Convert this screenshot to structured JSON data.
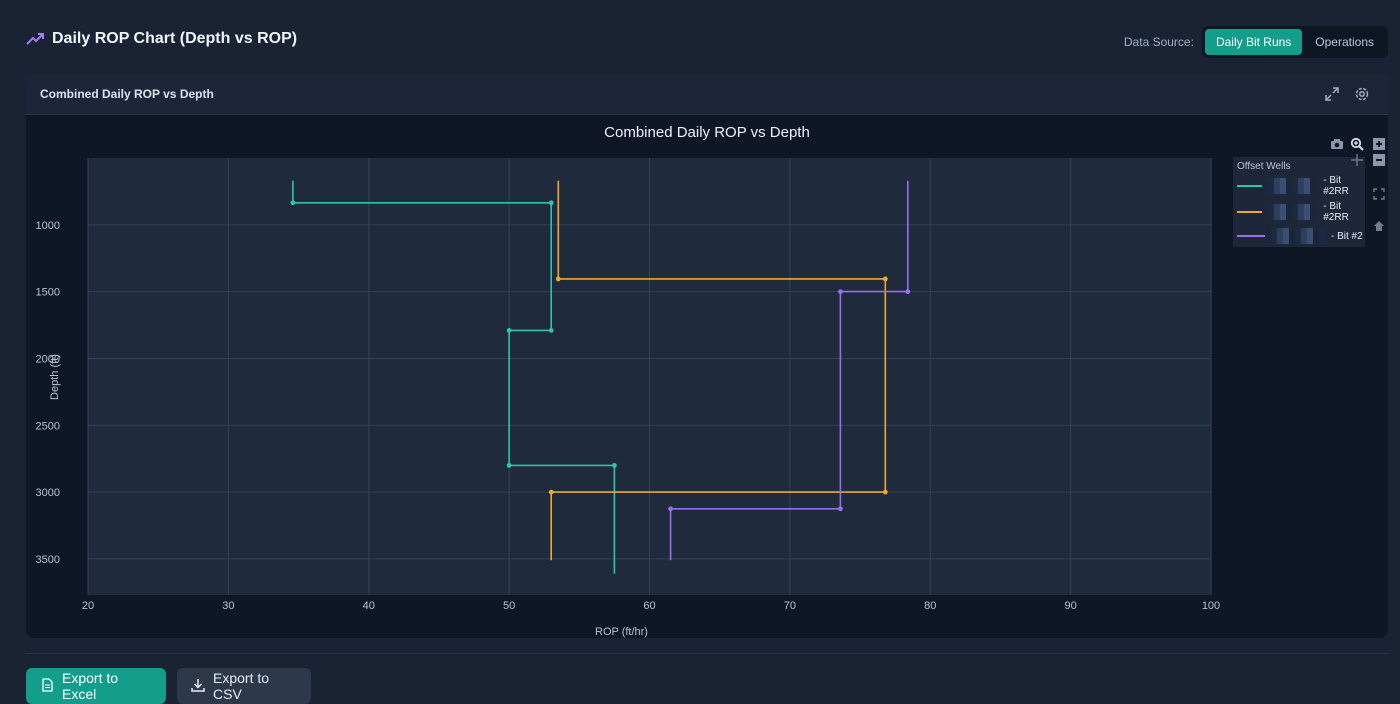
{
  "header": {
    "title": "Daily ROP Chart (Depth vs ROP)",
    "data_source_label": "Data Source:",
    "toggle_options": [
      "Daily Bit Runs",
      "Operations"
    ],
    "active_option": "Daily Bit Runs"
  },
  "card": {
    "title": "Combined Daily ROP vs Depth"
  },
  "legend": {
    "title": "Offset Wells",
    "items": [
      {
        "label": "- Bit #2RR",
        "color": "#2ec4b0"
      },
      {
        "label": "- Bit #2RR",
        "color": "#f0a92b"
      },
      {
        "label": "- Bit #2",
        "color": "#9b6cf0"
      }
    ]
  },
  "buttons": {
    "excel": "Export to Excel",
    "csv": "Export to CSV"
  },
  "chart_data": {
    "type": "line",
    "title": "Combined Daily ROP vs Depth",
    "xlabel": "ROP (ft/hr)",
    "ylabel": "Depth (ft)",
    "xlim": [
      20,
      100
    ],
    "ylim": [
      3770,
      500
    ],
    "y_reversed": true,
    "x_ticks": [
      20,
      30,
      40,
      50,
      60,
      70,
      80,
      90,
      100
    ],
    "y_ticks": [
      1000,
      1500,
      2000,
      2500,
      3000,
      3500
    ],
    "grid": true,
    "legend_position": "top-right",
    "series": [
      {
        "color": "#2ec4b0",
        "points": [
          [
            34.6,
            670
          ],
          [
            34.6,
            835
          ],
          [
            53.0,
            835
          ],
          [
            53.0,
            1790
          ],
          [
            50.0,
            1790
          ],
          [
            50.0,
            2800
          ],
          [
            57.5,
            2800
          ],
          [
            57.5,
            3610
          ]
        ],
        "markers": [
          [
            34.6,
            835
          ],
          [
            53.0,
            835
          ],
          [
            53.0,
            1790
          ],
          [
            50.0,
            1790
          ],
          [
            50.0,
            2800
          ],
          [
            57.5,
            2800
          ]
        ]
      },
      {
        "color": "#f0a92b",
        "points": [
          [
            53.5,
            670
          ],
          [
            53.5,
            1405
          ],
          [
            76.8,
            1405
          ],
          [
            76.8,
            3000
          ],
          [
            53.0,
            3000
          ],
          [
            53.0,
            3510
          ]
        ],
        "markers": [
          [
            53.5,
            1405
          ],
          [
            76.8,
            1405
          ],
          [
            76.8,
            3000
          ],
          [
            53.0,
            3000
          ]
        ]
      },
      {
        "color": "#9b6cf0",
        "points": [
          [
            78.4,
            670
          ],
          [
            78.4,
            1500
          ],
          [
            73.6,
            1500
          ],
          [
            73.6,
            3125
          ],
          [
            61.5,
            3125
          ],
          [
            61.5,
            3510
          ]
        ],
        "markers": [
          [
            78.4,
            1500
          ],
          [
            73.6,
            1500
          ],
          [
            73.6,
            3125
          ],
          [
            61.5,
            3125
          ]
        ]
      }
    ]
  }
}
